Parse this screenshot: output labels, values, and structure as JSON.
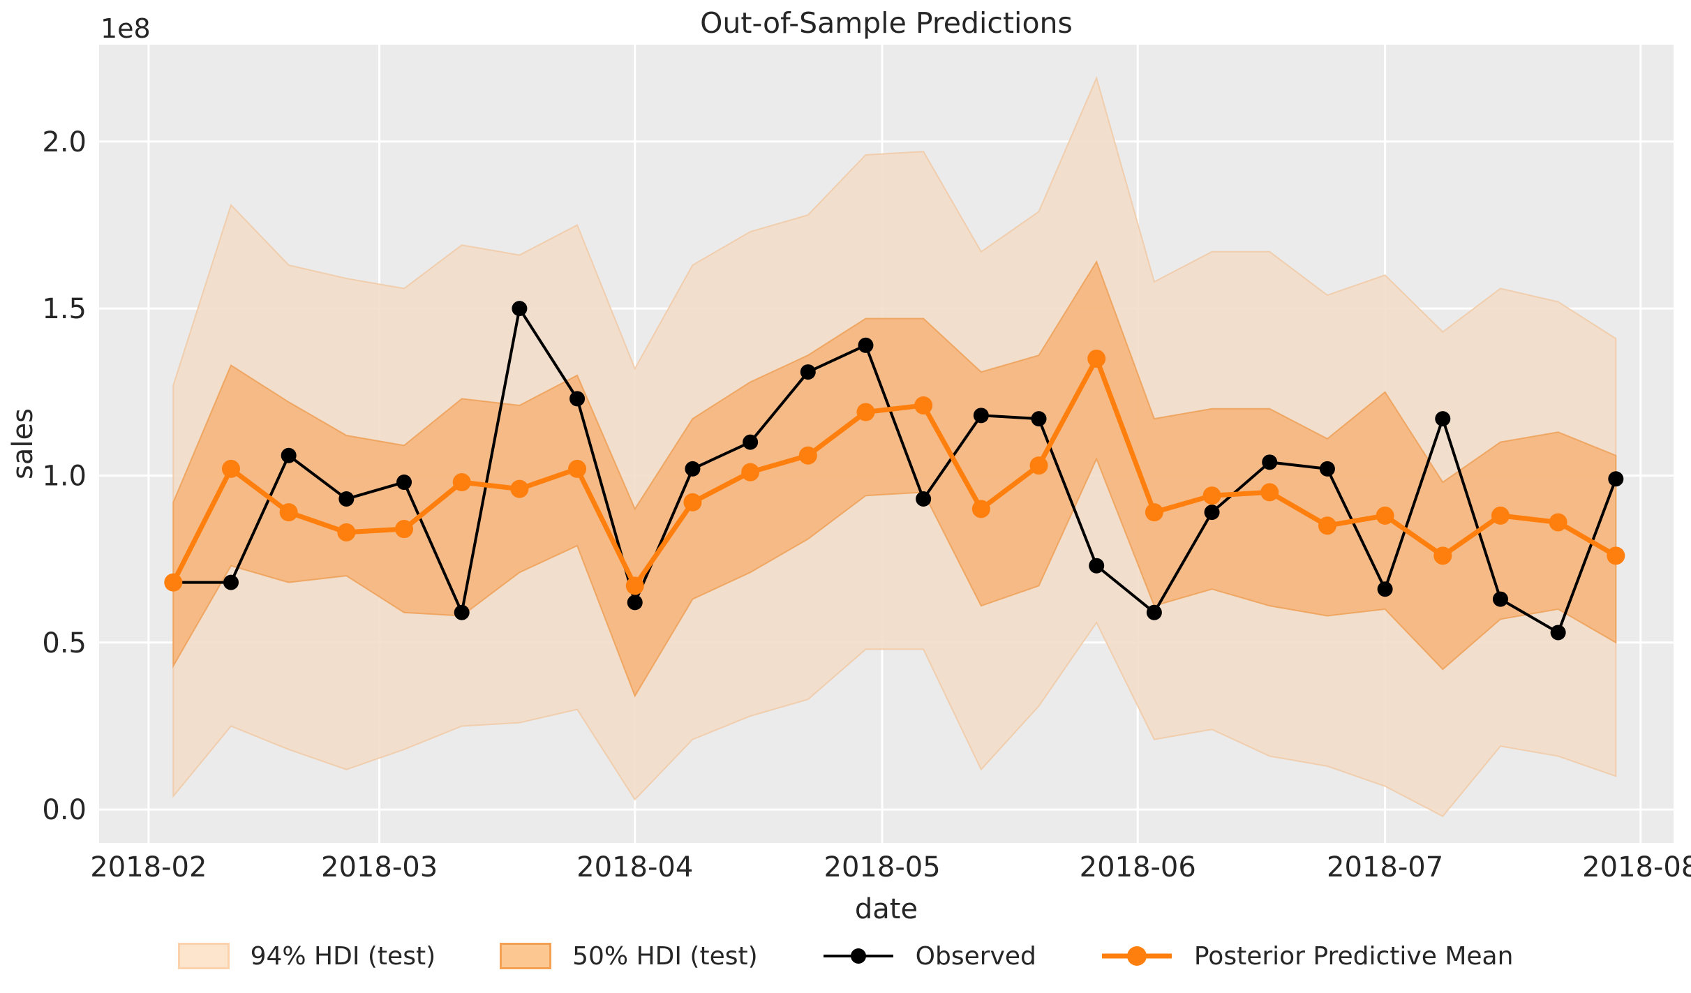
{
  "title": "Out-of-Sample Predictions",
  "axes": {
    "ylabel": "sales",
    "xlabel": "date",
    "offset_label": "1e8",
    "x_tick_labels": [
      "2018-02",
      "2018-03",
      "2018-04",
      "2018-05",
      "2018-06",
      "2018-07",
      "2018-08"
    ],
    "x_tick_dates": [
      "2018-02-01",
      "2018-03-01",
      "2018-04-01",
      "2018-05-01",
      "2018-06-01",
      "2018-07-01",
      "2018-08-01"
    ],
    "y_tick_labels": [
      "0.0",
      "0.5",
      "1.0",
      "1.5",
      "2.0"
    ],
    "y_tick_values": [
      0.0,
      0.5,
      1.0,
      1.5,
      2.0
    ]
  },
  "legend": {
    "items": [
      {
        "label": "94% HDI (test)",
        "kind": "band-94"
      },
      {
        "label": "50% HDI (test)",
        "kind": "band-50"
      },
      {
        "label": "Observed",
        "kind": "line-observed"
      },
      {
        "label": "Posterior Predictive Mean",
        "kind": "line-mean"
      }
    ]
  },
  "colors": {
    "figure_background": "#ffffff",
    "plot_background": "#ebebeb",
    "grid": "#ffffff",
    "hdi_94_fill": "#f2dcc7",
    "hdi_94_edge": "#f0c8a2",
    "hdi_50_fill": "#f5b67f",
    "hdi_50_edge": "#ee9e52",
    "observed": "#000000",
    "mean": "#ff7f0e",
    "legend_swatch_94_fill": "#fde4cd",
    "legend_swatch_94_edge": "#fbd2ac",
    "legend_swatch_50_fill": "#fcc791",
    "legend_swatch_50_edge": "#f5a155",
    "text": "#262626"
  },
  "chart_data": {
    "type": "line",
    "title": "Out-of-Sample Predictions",
    "xlabel": "date",
    "ylabel": "sales",
    "y_scale_factor": "1e8",
    "grid": true,
    "legend_position": "bottom",
    "xlim": [
      "2018-01-26",
      "2018-08-05"
    ],
    "ylim": [
      -0.1,
      2.29
    ],
    "x": [
      "2018-02-04",
      "2018-02-11",
      "2018-02-18",
      "2018-02-25",
      "2018-03-04",
      "2018-03-11",
      "2018-03-18",
      "2018-03-25",
      "2018-04-01",
      "2018-04-08",
      "2018-04-15",
      "2018-04-22",
      "2018-04-29",
      "2018-05-06",
      "2018-05-13",
      "2018-05-20",
      "2018-05-27",
      "2018-06-03",
      "2018-06-10",
      "2018-06-17",
      "2018-06-24",
      "2018-07-01",
      "2018-07-08",
      "2018-07-15",
      "2018-07-22",
      "2018-07-29"
    ],
    "series": [
      {
        "name": "Observed",
        "type": "line-with-markers",
        "values": [
          0.68,
          0.68,
          1.06,
          0.93,
          0.98,
          0.59,
          1.5,
          1.23,
          0.62,
          1.02,
          1.1,
          1.31,
          1.39,
          0.93,
          1.18,
          1.17,
          0.73,
          0.59,
          0.89,
          1.04,
          1.02,
          0.66,
          1.17,
          0.63,
          0.53,
          0.99
        ]
      },
      {
        "name": "Posterior Predictive Mean",
        "type": "line-with-markers",
        "values": [
          0.68,
          1.02,
          0.89,
          0.83,
          0.84,
          0.98,
          0.96,
          1.02,
          0.67,
          0.92,
          1.01,
          1.06,
          1.19,
          1.21,
          0.9,
          1.03,
          1.35,
          0.89,
          0.94,
          0.95,
          0.85,
          0.88,
          0.76,
          0.88,
          0.86,
          0.76
        ]
      },
      {
        "name": "50% HDI (test)",
        "type": "band",
        "lower": [
          0.43,
          0.73,
          0.68,
          0.7,
          0.59,
          0.58,
          0.71,
          0.79,
          0.34,
          0.63,
          0.71,
          0.81,
          0.94,
          0.95,
          0.61,
          0.67,
          1.05,
          0.61,
          0.66,
          0.61,
          0.58,
          0.6,
          0.42,
          0.57,
          0.6,
          0.5
        ],
        "upper": [
          0.92,
          1.33,
          1.22,
          1.12,
          1.09,
          1.23,
          1.21,
          1.3,
          0.9,
          1.17,
          1.28,
          1.36,
          1.47,
          1.47,
          1.31,
          1.36,
          1.64,
          1.17,
          1.2,
          1.2,
          1.11,
          1.25,
          0.98,
          1.1,
          1.13,
          1.06
        ]
      },
      {
        "name": "94% HDI (test)",
        "type": "band",
        "lower": [
          0.04,
          0.25,
          0.18,
          0.12,
          0.18,
          0.25,
          0.26,
          0.3,
          0.03,
          0.21,
          0.28,
          0.33,
          0.48,
          0.48,
          0.12,
          0.31,
          0.56,
          0.21,
          0.24,
          0.16,
          0.13,
          0.07,
          -0.02,
          0.19,
          0.16,
          0.1
        ],
        "upper": [
          1.27,
          1.81,
          1.63,
          1.59,
          1.56,
          1.69,
          1.66,
          1.75,
          1.32,
          1.63,
          1.73,
          1.78,
          1.96,
          1.97,
          1.67,
          1.79,
          2.19,
          1.58,
          1.67,
          1.67,
          1.54,
          1.6,
          1.43,
          1.56,
          1.52,
          1.41
        ]
      }
    ]
  }
}
